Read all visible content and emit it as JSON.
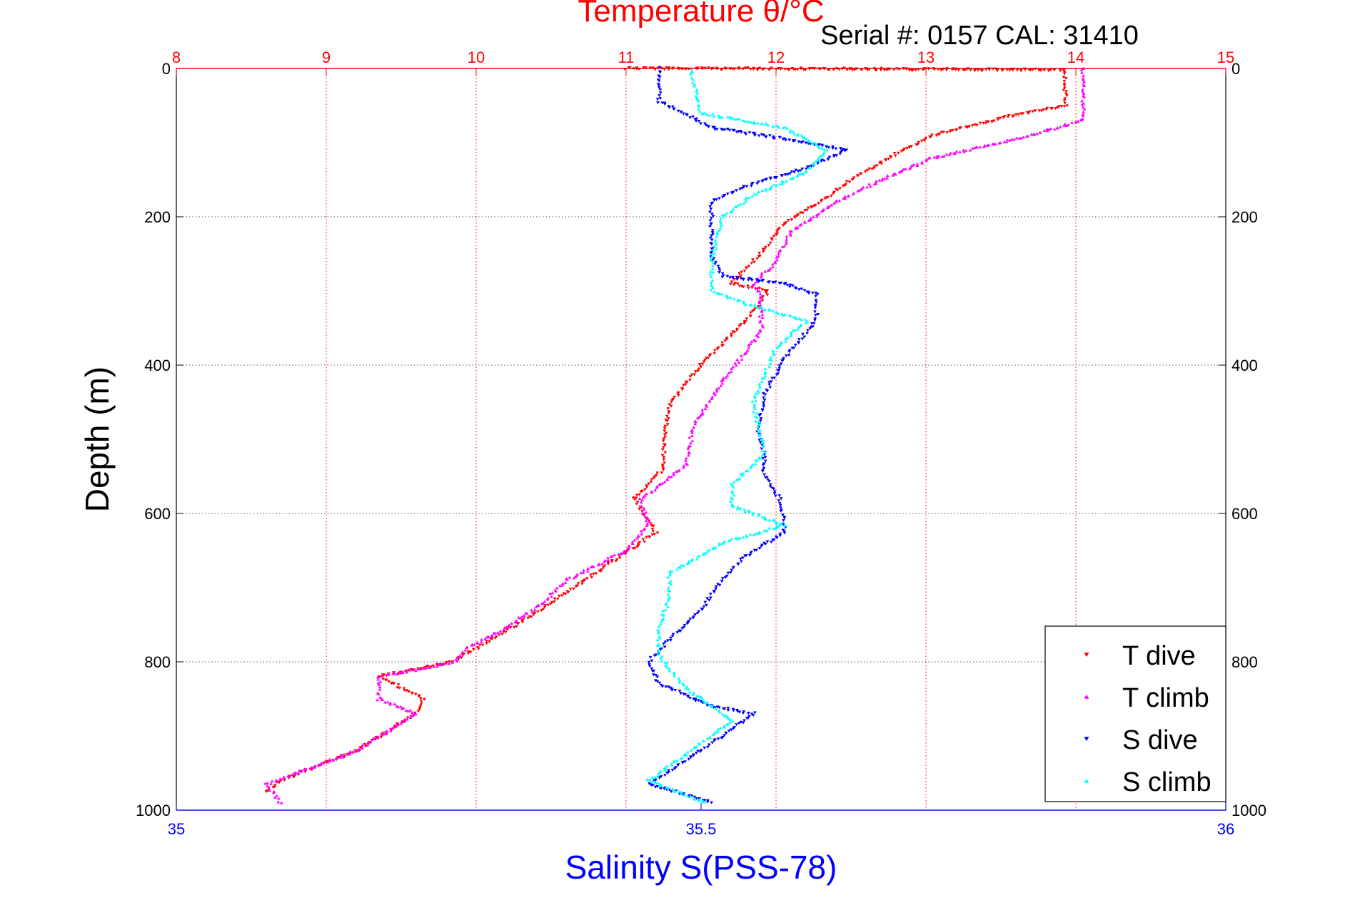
{
  "chart_data": {
    "type": "scatter",
    "title": "Temperature θ/°C",
    "annotation": "Serial #: 0157  CAL: 31410",
    "ylabel": "Depth (m)",
    "xlabel": "Salinity S(PSS-78)",
    "y_axis": {
      "lim": [
        0,
        1000
      ],
      "reversed": true,
      "ticks": [
        0,
        200,
        400,
        600,
        800,
        1000
      ],
      "grid": true
    },
    "x_top_axis": {
      "quantity": "temperature",
      "lim": [
        8,
        15
      ],
      "ticks": [
        8,
        9,
        10,
        11,
        12,
        13,
        14,
        15
      ],
      "grid": true,
      "color": "#ff0000"
    },
    "x_bottom_axis": {
      "quantity": "salinity",
      "lim": [
        35,
        36
      ],
      "ticks": [
        35,
        35.5,
        36
      ],
      "tick_labels": [
        "35",
        "35.5",
        "36"
      ],
      "color": "#0000ff"
    },
    "legend_position": "bottom-right",
    "series": [
      {
        "name": "T dive",
        "axis": "temperature",
        "marker": "triangle-down",
        "color": "#ff0000",
        "points": [
          [
            11.0,
            0
          ],
          [
            13.93,
            2
          ],
          [
            13.93,
            50
          ],
          [
            13.55,
            65
          ],
          [
            13.05,
            90
          ],
          [
            12.8,
            115
          ],
          [
            12.5,
            150
          ],
          [
            12.3,
            180
          ],
          [
            12.05,
            210
          ],
          [
            11.9,
            250
          ],
          [
            11.7,
            290
          ],
          [
            11.95,
            300
          ],
          [
            11.8,
            340
          ],
          [
            11.5,
            400
          ],
          [
            11.3,
            450
          ],
          [
            11.25,
            500
          ],
          [
            11.25,
            540
          ],
          [
            11.05,
            580
          ],
          [
            11.2,
            625
          ],
          [
            10.8,
            680
          ],
          [
            10.35,
            740
          ],
          [
            9.85,
            800
          ],
          [
            9.35,
            820
          ],
          [
            9.65,
            850
          ],
          [
            9.6,
            870
          ],
          [
            9.2,
            920
          ],
          [
            8.7,
            960
          ],
          [
            8.6,
            975
          ]
        ]
      },
      {
        "name": "T climb",
        "axis": "temperature",
        "marker": "triangle-up",
        "color": "#ff00ff",
        "points": [
          [
            8.7,
            990
          ],
          [
            8.6,
            965
          ],
          [
            9.2,
            920
          ],
          [
            9.6,
            870
          ],
          [
            9.35,
            850
          ],
          [
            9.35,
            820
          ],
          [
            9.85,
            800
          ],
          [
            9.95,
            780
          ],
          [
            10.15,
            760
          ],
          [
            10.45,
            720
          ],
          [
            10.6,
            690
          ],
          [
            11.0,
            650
          ],
          [
            11.15,
            615
          ],
          [
            11.1,
            580
          ],
          [
            11.4,
            535
          ],
          [
            11.45,
            480
          ],
          [
            11.65,
            420
          ],
          [
            11.9,
            355
          ],
          [
            11.9,
            310
          ],
          [
            11.85,
            290
          ],
          [
            12.0,
            260
          ],
          [
            12.1,
            220
          ],
          [
            12.4,
            180
          ],
          [
            12.7,
            150
          ],
          [
            13.05,
            120
          ],
          [
            13.5,
            100
          ],
          [
            14.05,
            70
          ],
          [
            14.05,
            0
          ]
        ]
      },
      {
        "name": "S dive",
        "axis": "salinity",
        "marker": "triangle-down",
        "color": "#0000ff",
        "points": [
          [
            35.46,
            0
          ],
          [
            35.46,
            45
          ],
          [
            35.51,
            80
          ],
          [
            35.58,
            95
          ],
          [
            35.64,
            110
          ],
          [
            35.6,
            135
          ],
          [
            35.54,
            160
          ],
          [
            35.51,
            180
          ],
          [
            35.51,
            220
          ],
          [
            35.51,
            250
          ],
          [
            35.52,
            280
          ],
          [
            35.58,
            290
          ],
          [
            35.61,
            305
          ],
          [
            35.61,
            340
          ],
          [
            35.58,
            390
          ],
          [
            35.56,
            440
          ],
          [
            35.555,
            490
          ],
          [
            35.56,
            520
          ],
          [
            35.56,
            550
          ],
          [
            35.575,
            580
          ],
          [
            35.58,
            625
          ],
          [
            35.54,
            660
          ],
          [
            35.52,
            690
          ],
          [
            35.5,
            730
          ],
          [
            35.47,
            770
          ],
          [
            35.45,
            800
          ],
          [
            35.46,
            830
          ],
          [
            35.51,
            860
          ],
          [
            35.55,
            870
          ],
          [
            35.5,
            920
          ],
          [
            35.45,
            965
          ],
          [
            35.51,
            990
          ]
        ]
      },
      {
        "name": "S climb",
        "axis": "salinity",
        "marker": "triangle-up",
        "color": "#00ffff",
        "points": [
          [
            35.505,
            990
          ],
          [
            35.45,
            960
          ],
          [
            35.49,
            920
          ],
          [
            35.53,
            880
          ],
          [
            35.49,
            840
          ],
          [
            35.47,
            810
          ],
          [
            35.46,
            790
          ],
          [
            35.46,
            750
          ],
          [
            35.47,
            715
          ],
          [
            35.47,
            680
          ],
          [
            35.52,
            640
          ],
          [
            35.58,
            615
          ],
          [
            35.53,
            590
          ],
          [
            35.53,
            560
          ],
          [
            35.56,
            520
          ],
          [
            35.55,
            450
          ],
          [
            35.57,
            380
          ],
          [
            35.6,
            340
          ],
          [
            35.55,
            320
          ],
          [
            35.51,
            300
          ],
          [
            35.51,
            260
          ],
          [
            35.52,
            200
          ],
          [
            35.55,
            170
          ],
          [
            35.6,
            140
          ],
          [
            35.62,
            110
          ],
          [
            35.58,
            80
          ],
          [
            35.5,
            60
          ],
          [
            35.49,
            0
          ]
        ]
      }
    ]
  }
}
